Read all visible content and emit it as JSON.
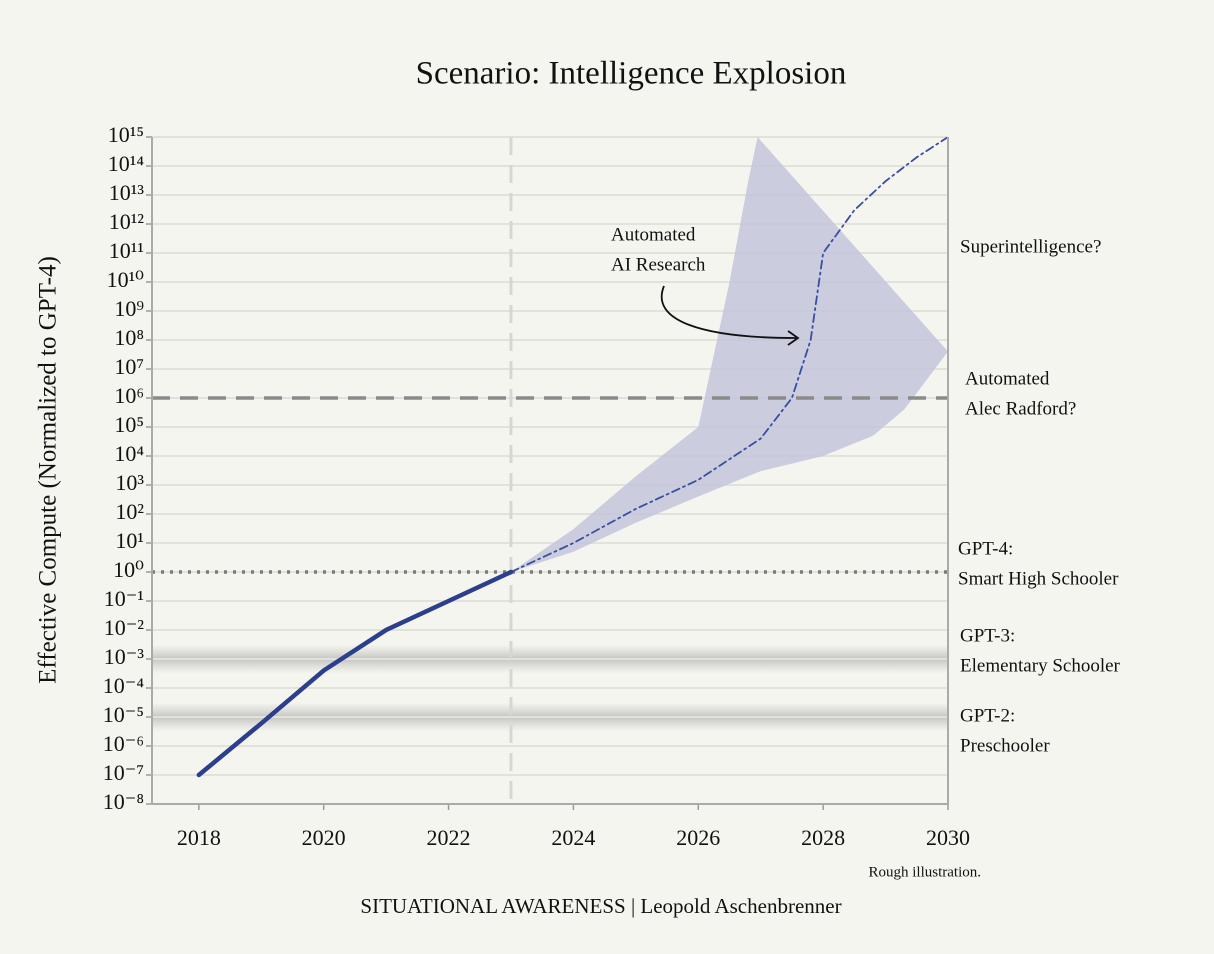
{
  "chart_data": {
    "type": "line",
    "title": "Scenario: Intelligence Explosion",
    "ylabel": "Effective Compute (Normalized to GPT-4)",
    "log_y": true,
    "grid": true,
    "xlim": [
      2017.25,
      2030
    ],
    "xticks": [
      2018,
      2020,
      2022,
      2024,
      2026,
      2028,
      2030
    ],
    "ylim": [
      1e-08,
      1000000000000000.0
    ],
    "yticks": [
      {
        "value": 1e-08,
        "label": "10⁻⁸"
      },
      {
        "value": 1e-07,
        "label": "10⁻⁷"
      },
      {
        "value": 1e-06,
        "label": "10⁻⁶"
      },
      {
        "value": 1e-05,
        "label": "10⁻⁵"
      },
      {
        "value": 0.0001,
        "label": "10⁻⁴"
      },
      {
        "value": 0.001,
        "label": "10⁻³"
      },
      {
        "value": 0.01,
        "label": "10⁻²"
      },
      {
        "value": 0.1,
        "label": "10⁻¹"
      },
      {
        "value": 1,
        "label": "10⁰"
      },
      {
        "value": 10,
        "label": "10¹"
      },
      {
        "value": 100,
        "label": "10²"
      },
      {
        "value": 1000,
        "label": "10³"
      },
      {
        "value": 10000.0,
        "label": "10⁴"
      },
      {
        "value": 100000.0,
        "label": "10⁵"
      },
      {
        "value": 1000000.0,
        "label": "10⁶"
      },
      {
        "value": 10000000.0,
        "label": "10⁷"
      },
      {
        "value": 100000000.0,
        "label": "10⁸"
      },
      {
        "value": 1000000000.0,
        "label": "10⁹"
      },
      {
        "value": 10000000000.0,
        "label": "10¹⁰"
      },
      {
        "value": 100000000000.0,
        "label": "10¹¹"
      },
      {
        "value": 1000000000000.0,
        "label": "10¹²"
      },
      {
        "value": 10000000000000.0,
        "label": "10¹³"
      },
      {
        "value": 100000000000000.0,
        "label": "10¹⁴"
      },
      {
        "value": 1000000000000000.0,
        "label": "10¹⁵"
      }
    ],
    "historical": {
      "color": "#2b3f8c",
      "x": [
        2018,
        2019,
        2020,
        2021,
        2022,
        2023
      ],
      "values": [
        1e-07,
        6e-06,
        0.0004,
        0.01,
        0.1,
        1
      ]
    },
    "projection": {
      "color": "#3a4ea0",
      "style": "dashdot",
      "x": [
        2023,
        2024,
        2025,
        2026,
        2027,
        2027.5,
        2027.8,
        2028,
        2028.5,
        2029,
        2029.5,
        2030
      ],
      "values": [
        1,
        10,
        150,
        1500,
        40000,
        1000000.0,
        100000000.0,
        100000000000.0,
        3000000000000.0,
        30000000000000.0,
        200000000000000.0,
        1000000000000000.0
      ]
    },
    "band": {
      "color": "#c3c6dc",
      "upper": {
        "x": [
          2023,
          2024,
          2025,
          2026,
          2026.2,
          2026.5,
          2026.8,
          2026.95
        ],
        "values": [
          1,
          30,
          2000,
          100000.0,
          10000000.0,
          10000000000.0,
          30000000000000.0,
          1000000000000000.0
        ]
      },
      "lower": {
        "x": [
          2023,
          2024,
          2025,
          2026,
          2027,
          2028,
          2028.8,
          2029.3,
          2030
        ],
        "values": [
          1,
          5,
          50,
          400,
          3000,
          10000,
          50000,
          400000,
          40000000.0
        ]
      }
    },
    "vline": {
      "value": 2023,
      "style": "dashed",
      "color": "#d6d6d2"
    },
    "hlines": [
      {
        "value": 1000000.0,
        "style": "dashed",
        "color": "#8a8a8a"
      },
      {
        "value": 1,
        "style": "dotted",
        "color": "#7a7a7a"
      }
    ],
    "bands": [
      0.001,
      1e-05
    ],
    "annotations": [
      {
        "lines": [
          "Superintelligence?"
        ]
      },
      {
        "lines": [
          "Automated",
          "Alec Radford?"
        ]
      },
      {
        "lines": [
          "GPT-4:",
          "Smart High Schooler"
        ]
      },
      {
        "lines": [
          "GPT-3:",
          "Elementary Schooler"
        ]
      },
      {
        "lines": [
          "GPT-2:",
          "Preschooler"
        ]
      }
    ],
    "arrow_note": [
      "Automated",
      "AI Research"
    ],
    "note": "Rough illustration.",
    "footer": "SITUATIONAL AWARENESS | Leopold Aschenbrenner"
  }
}
